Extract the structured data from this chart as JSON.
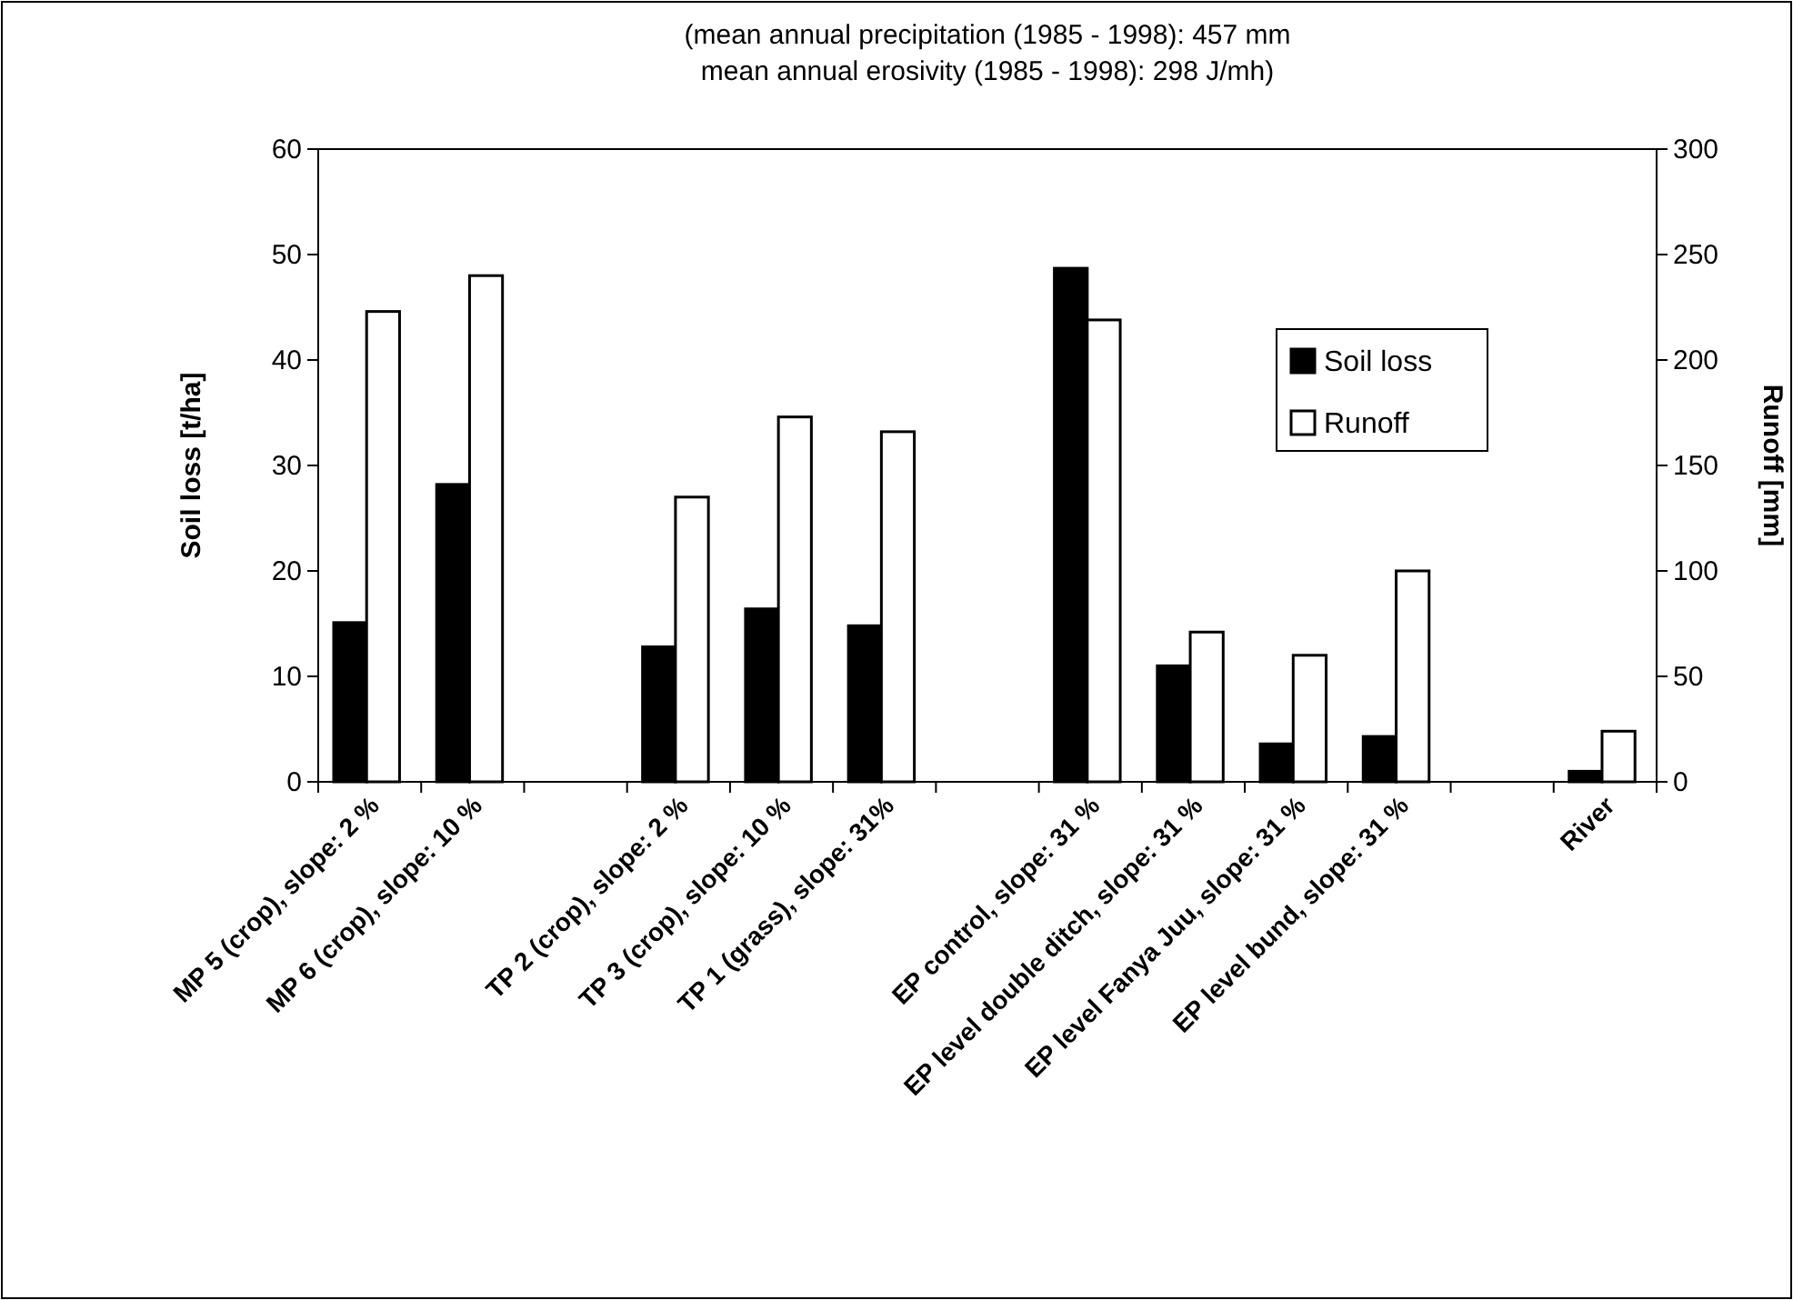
{
  "chart_data": {
    "type": "bar",
    "title": "(mean annual precipitation (1985 - 1998): 457 mm",
    "subtitle": "mean annual erosivity (1985 - 1998): 298 J/mh)",
    "ylabel": "Soil loss [t/ha]",
    "y2label": "Runoff [mm]",
    "categories": [
      "MP 5 (crop), slope: 2 %",
      "MP 6 (crop), slope: 10 %",
      null,
      "TP 2 (crop), slope: 2 %",
      "TP 3 (crop), slope: 10 %",
      "TP 1 (grass), slope: 31%",
      null,
      "EP control, slope: 31 %",
      "EP level double ditch, slope: 31 %",
      "EP level Fanya Juu, slope: 31 %",
      "EP level bund, slope: 31 %",
      null,
      "River"
    ],
    "series": [
      {
        "name": "Soil loss",
        "color": "#000000",
        "values": [
          15.1,
          28.2,
          null,
          12.8,
          16.4,
          14.8,
          null,
          48.7,
          11.0,
          3.6,
          4.3,
          null,
          1.0
        ]
      },
      {
        "name": "Runoff",
        "color": "#ffffff",
        "axis": "y2",
        "values": [
          223,
          240,
          null,
          135,
          173,
          166,
          null,
          219,
          71,
          60,
          100,
          null,
          24
        ]
      }
    ],
    "ylim": [
      0,
      60
    ],
    "yticks": [
      0,
      10,
      20,
      30,
      40,
      50,
      60
    ],
    "y2lim": [
      0,
      300
    ],
    "y2ticks": [
      0,
      50,
      100,
      150,
      200,
      250,
      300
    ],
    "legend": "right",
    "grid": false
  }
}
